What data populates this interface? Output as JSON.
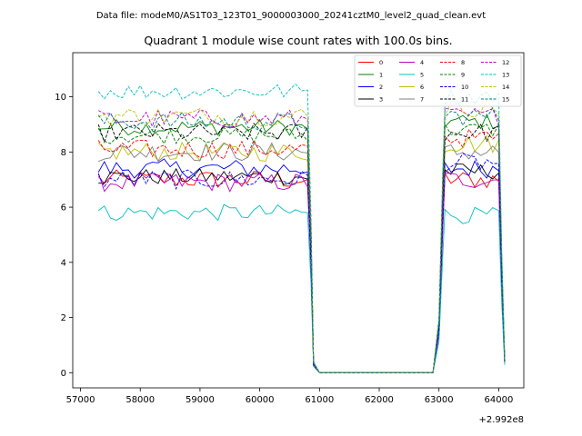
{
  "suptitle": "Data file: modeM0/AS1T03_123T01_9000003000_20241cztM0_level2_quad_clean.evt",
  "chart_data": {
    "type": "line",
    "title": "Quadrant 1 module wise count rates with 100.0s bins.",
    "xlabel": "",
    "ylabel": "",
    "x_offset_label": "+2.992e8",
    "xlim": [
      56870,
      64420
    ],
    "ylim": [
      -0.55,
      11.6
    ],
    "xticks": [
      57000,
      58000,
      59000,
      60000,
      61000,
      62000,
      63000,
      64000
    ],
    "xtick_labels": [
      "57000",
      "58000",
      "59000",
      "60000",
      "61000",
      "62000",
      "63000",
      "64000"
    ],
    "yticks": [
      0,
      2,
      4,
      6,
      8,
      10
    ],
    "ytick_labels": [
      "0",
      "2",
      "4",
      "6",
      "8",
      "10"
    ],
    "legend_position": "top-right",
    "segments": [
      {
        "start": 57300,
        "end": 60800,
        "step": 100
      },
      {
        "x": [
          60860,
          60900,
          61000,
          62900,
          63000,
          63060
        ]
      },
      {
        "start": 63100,
        "end": 64000,
        "step": 100
      },
      {
        "x": [
          64050,
          64100
        ]
      }
    ],
    "series": [
      {
        "name": "0",
        "color": "#ff0000",
        "style": "solid",
        "level_a": 7.0,
        "level_b": 7.0,
        "amp": 0.35
      },
      {
        "name": "1",
        "color": "#008000",
        "style": "solid",
        "level_a": 8.9,
        "level_b": 9.1,
        "amp": 0.3
      },
      {
        "name": "2",
        "color": "#0000ff",
        "style": "solid",
        "level_a": 7.4,
        "level_b": 7.4,
        "amp": 0.35
      },
      {
        "name": "3",
        "color": "#000000",
        "style": "solid",
        "level_a": 7.1,
        "level_b": 7.3,
        "amp": 0.3
      },
      {
        "name": "4",
        "color": "#bf00bf",
        "style": "solid",
        "level_a": 6.9,
        "level_b": 7.0,
        "amp": 0.35
      },
      {
        "name": "5",
        "color": "#00bfbf",
        "style": "solid",
        "level_a": 5.8,
        "level_b": 5.7,
        "amp": 0.3
      },
      {
        "name": "6",
        "color": "#bfbf00",
        "style": "solid",
        "level_a": 8.0,
        "level_b": 8.3,
        "amp": 0.35
      },
      {
        "name": "7",
        "color": "#808080",
        "style": "solid",
        "level_a": 8.0,
        "level_b": 8.0,
        "amp": 0.35
      },
      {
        "name": "8",
        "color": "#ff0000",
        "style": "dashed",
        "level_a": 8.1,
        "level_b": 8.5,
        "amp": 0.35
      },
      {
        "name": "9",
        "color": "#008000",
        "style": "dashed",
        "level_a": 8.6,
        "level_b": 8.8,
        "amp": 0.3
      },
      {
        "name": "10",
        "color": "#0000ff",
        "style": "dashed",
        "level_a": 7.0,
        "level_b": 7.6,
        "amp": 0.35
      },
      {
        "name": "11",
        "color": "#000000",
        "style": "dashed",
        "level_a": 8.7,
        "level_b": 8.7,
        "amp": 0.35
      },
      {
        "name": "12",
        "color": "#bf00bf",
        "style": "dashed",
        "level_a": 9.2,
        "level_b": 9.3,
        "amp": 0.35
      },
      {
        "name": "13",
        "color": "#00bfbf",
        "style": "dashed",
        "level_a": 10.2,
        "level_b": 10.0,
        "amp": 0.3
      },
      {
        "name": "14",
        "color": "#bfbf00",
        "style": "dashed",
        "level_a": 9.3,
        "level_b": 9.6,
        "amp": 0.35
      },
      {
        "name": "15",
        "color": "#008080",
        "style": "dashed",
        "level_a": 9.1,
        "level_b": 9.3,
        "amp": 0.35
      }
    ]
  }
}
